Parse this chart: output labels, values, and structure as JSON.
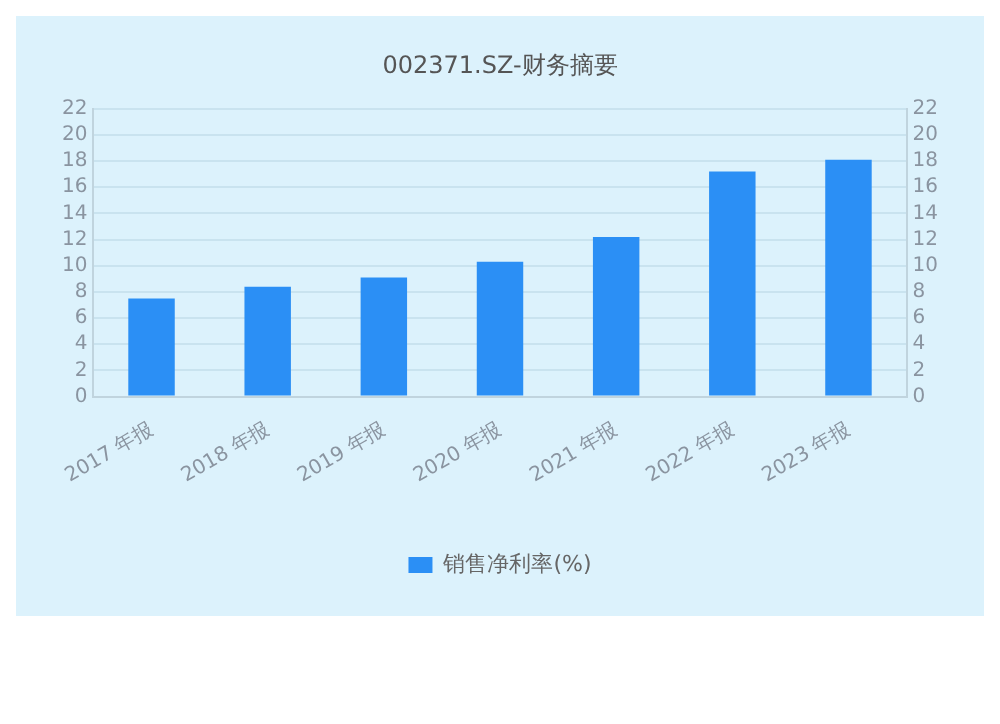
{
  "chart_data": {
    "type": "bar",
    "title": "002371.SZ-财务摘要",
    "categories": [
      "2017 年报",
      "2018 年报",
      "2019 年报",
      "2020 年报",
      "2021 年报",
      "2022 年报",
      "2023 年报"
    ],
    "series": [
      {
        "name": "销售净利率(%)",
        "color": "#2b8ff5",
        "values": [
          7.5,
          8.4,
          9.1,
          10.3,
          12.2,
          17.2,
          18.1
        ]
      }
    ],
    "ylim": [
      0,
      22
    ],
    "yticks": [
      0,
      2,
      4,
      6,
      8,
      10,
      12,
      14,
      16,
      18,
      20,
      22
    ],
    "y2lim": [
      0,
      22
    ],
    "y2ticks": [
      0,
      2,
      4,
      6,
      8,
      10,
      12,
      14,
      16,
      18,
      20,
      22
    ],
    "grid": "y",
    "legend": "bottom"
  }
}
